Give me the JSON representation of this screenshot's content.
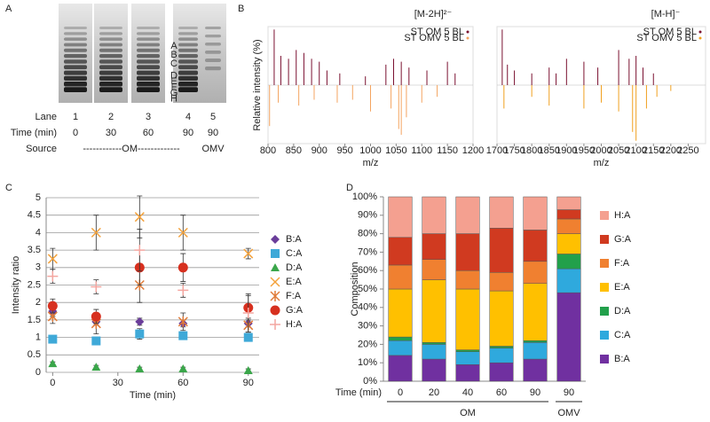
{
  "panel_labels": [
    "A",
    "B",
    "C",
    "D"
  ],
  "gel": {
    "lane_label": "Lane",
    "lanes": [
      "1",
      "2",
      "3",
      "4",
      "5"
    ],
    "time_label": "Time (min)",
    "times": [
      "0",
      "30",
      "60",
      "90",
      "90"
    ],
    "source_label": "Source",
    "source_om": "------------OM-------------",
    "source_omv": "OMV",
    "band_labels": [
      "A",
      "B",
      "C",
      "D",
      "E",
      "F",
      "G",
      "H"
    ]
  },
  "chart_data": [
    {
      "type": "spectrum",
      "title": "[M-2H]²⁻",
      "ylabel": "Relative intensity (%)",
      "xlabel": "m/z",
      "xlim": [
        800,
        1200
      ],
      "xticks": [
        800,
        850,
        900,
        950,
        1000,
        1050,
        1100,
        1150,
        1200
      ],
      "ylim": [
        -100,
        100
      ],
      "series": [
        {
          "name": "ST OM 5 BL",
          "color": "#7a1030",
          "x": [
            812,
            825,
            840,
            855,
            870,
            885,
            900,
            915,
            940,
            990,
            1030,
            1045,
            1060,
            1075,
            1110,
            1150,
            1165
          ],
          "values": [
            95,
            50,
            45,
            60,
            55,
            45,
            40,
            25,
            20,
            15,
            35,
            45,
            40,
            30,
            25,
            40,
            20
          ]
        },
        {
          "name": "ST OMV 5 BL",
          "color": "#f4a460",
          "x": [
            803,
            820,
            860,
            890,
            935,
            965,
            1000,
            1040,
            1055,
            1060,
            1070,
            1100,
            1130
          ],
          "values": [
            -70,
            -30,
            -35,
            -25,
            -30,
            -25,
            -45,
            -40,
            -75,
            -85,
            -55,
            -30,
            -20
          ]
        }
      ]
    },
    {
      "type": "spectrum",
      "title": "[M-H]⁻",
      "xlabel": "m/z",
      "xlim": [
        1700,
        2300
      ],
      "xticks": [
        1700,
        1750,
        1800,
        1850,
        1900,
        1950,
        2000,
        2050,
        2100,
        2150,
        2200,
        2250
      ],
      "ylim": [
        -100,
        100
      ],
      "series": [
        {
          "name": "ST OM 5 BL",
          "color": "#7a1030",
          "x": [
            1715,
            1730,
            1750,
            1800,
            1850,
            1870,
            1900,
            1950,
            1990,
            2050,
            2080,
            2100,
            2120,
            2150
          ],
          "values": [
            95,
            35,
            25,
            20,
            30,
            20,
            45,
            40,
            30,
            60,
            45,
            50,
            30,
            20
          ]
        },
        {
          "name": "ST OMV 5 BL",
          "color": "#f0a020",
          "x": [
            1720,
            1800,
            1850,
            1950,
            2000,
            2050,
            2090,
            2100,
            2130,
            2160,
            2200
          ],
          "values": [
            -40,
            -20,
            -35,
            -40,
            -30,
            -45,
            -80,
            -95,
            -40,
            -20,
            -10
          ]
        }
      ]
    },
    {
      "type": "scatter",
      "ylabel": "Intensity ratio",
      "xlabel": "Time (min)",
      "xlim": [
        -3,
        95
      ],
      "xticks": [
        0,
        30,
        60,
        90
      ],
      "ylim": [
        0,
        5
      ],
      "yticks": [
        0,
        0.5,
        1,
        1.5,
        2,
        2.5,
        3,
        3.5,
        4,
        4.5,
        5
      ],
      "grid": true,
      "x": [
        0,
        20,
        40,
        60,
        90
      ],
      "series": [
        {
          "name": "B:A",
          "color": "#6a3d9a",
          "marker": "diamond",
          "values": [
            1.75,
            1.45,
            1.45,
            1.4,
            1.4
          ],
          "errors": [
            0.15,
            0.1,
            0.1,
            0.1,
            0.1
          ]
        },
        {
          "name": "C:A",
          "color": "#3fa9d8",
          "marker": "square",
          "values": [
            0.95,
            0.9,
            1.1,
            1.05,
            1.0
          ],
          "errors": [
            0.1,
            0.1,
            0.15,
            0.1,
            0.1
          ]
        },
        {
          "name": "D:A",
          "color": "#3aa64a",
          "marker": "triangle",
          "values": [
            0.25,
            0.15,
            0.1,
            0.1,
            0.05
          ],
          "errors": [
            0.05,
            0.05,
            0.05,
            0.05,
            0.05
          ]
        },
        {
          "name": "E:A",
          "color": "#f4a23c",
          "marker": "x",
          "values": [
            3.25,
            4.0,
            4.45,
            4.0,
            3.4
          ],
          "errors": [
            0.3,
            0.5,
            0.6,
            0.5,
            0.15
          ]
        },
        {
          "name": "F:A",
          "color": "#e07b39",
          "marker": "asterisk",
          "values": [
            1.6,
            1.4,
            2.5,
            1.45,
            1.35
          ],
          "errors": [
            0.2,
            0.3,
            0.5,
            0.25,
            0.2
          ]
        },
        {
          "name": "G:A",
          "color": "#d7301f",
          "marker": "circle",
          "values": [
            1.9,
            1.6,
            3.0,
            3.0,
            1.85
          ],
          "errors": [
            0.2,
            0.2,
            0.5,
            0.4,
            0.35
          ]
        },
        {
          "name": "H:A",
          "color": "#f4a6a0",
          "marker": "plus",
          "values": [
            2.75,
            2.45,
            3.5,
            2.35,
            1.7
          ],
          "errors": [
            0.2,
            0.2,
            0.6,
            0.2,
            0.55
          ]
        }
      ]
    },
    {
      "type": "stacked_bar",
      "ylabel": "Composition",
      "xlabel": "Time (min)",
      "categories": [
        "0",
        "20",
        "40",
        "60",
        "90",
        "90"
      ],
      "group_labels": [
        "OM",
        "OMV"
      ],
      "ylim": [
        0,
        100
      ],
      "yticks": [
        {
          "value": 0,
          "label": "0%"
        },
        {
          "value": 10,
          "label": "10%"
        },
        {
          "value": 20,
          "label": "20%"
        },
        {
          "value": 30,
          "label": "30%"
        },
        {
          "value": 40,
          "label": "40%"
        },
        {
          "value": 50,
          "label": "50%"
        },
        {
          "value": 60,
          "label": "60%"
        },
        {
          "value": 70,
          "label": "70%"
        },
        {
          "value": 80,
          "label": "80%"
        },
        {
          "value": 90,
          "label": "90%"
        },
        {
          "value": 100,
          "label": "100%"
        }
      ],
      "series": [
        {
          "name": "B:A",
          "color": "#7030a0",
          "values": [
            14,
            12,
            9,
            10,
            12,
            48
          ]
        },
        {
          "name": "C:A",
          "color": "#2fa9dd",
          "values": [
            8,
            8,
            7,
            8,
            9,
            13
          ]
        },
        {
          "name": "D:A",
          "color": "#22a04b",
          "values": [
            2,
            1,
            1,
            1,
            1,
            8
          ]
        },
        {
          "name": "E:A",
          "color": "#ffc000",
          "values": [
            26,
            34,
            33,
            30,
            31,
            11
          ]
        },
        {
          "name": "F:A",
          "color": "#f08030",
          "values": [
            13,
            11,
            10,
            10,
            12,
            8
          ]
        },
        {
          "name": "G:A",
          "color": "#d03a20",
          "values": [
            15,
            14,
            20,
            24,
            17,
            5
          ]
        },
        {
          "name": "H:A",
          "color": "#f4a090",
          "values": [
            22,
            20,
            20,
            17,
            18,
            7
          ]
        }
      ]
    }
  ]
}
